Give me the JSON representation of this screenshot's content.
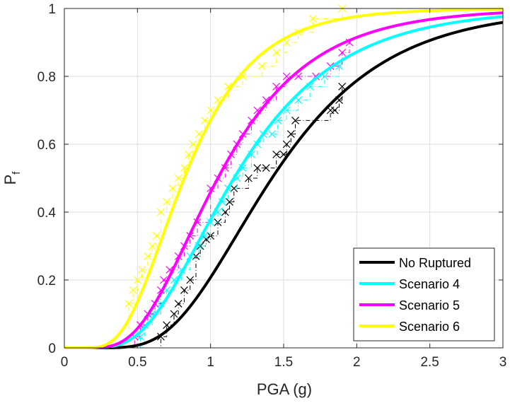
{
  "chart_data": {
    "type": "line",
    "title": "",
    "xlabel": "PGA (g)",
    "ylabel_main": "P",
    "ylabel_sub": "f",
    "xlim": [
      0,
      3
    ],
    "ylim": [
      0,
      1
    ],
    "xticks": [
      0,
      0.5,
      1,
      1.5,
      2,
      2.5,
      3
    ],
    "xtick_labels": [
      "0",
      "0.5",
      "1",
      "1.5",
      "2",
      "2.5",
      "3"
    ],
    "yticks": [
      0,
      0.2,
      0.4,
      0.6,
      0.8,
      1
    ],
    "ytick_labels": [
      "0",
      "0.2",
      "0.4",
      "0.6",
      "0.8",
      "1"
    ],
    "grid": true,
    "legend_position": "bottom-right",
    "series": [
      {
        "name": "No Ruptured",
        "color": "#000000",
        "fragility_median": 1.42,
        "fragility_beta": 0.43,
        "empirical_x": [
          0.66,
          0.7,
          0.75,
          0.78,
          0.82,
          0.86,
          0.9,
          0.93,
          0.97,
          1.0,
          1.05,
          1.1,
          1.13,
          1.16,
          1.26,
          1.32,
          1.38,
          1.45,
          1.5,
          1.52,
          1.55,
          1.58,
          1.82,
          1.85,
          1.88,
          1.9
        ],
        "empirical_y": [
          0.033,
          0.067,
          0.1,
          0.13,
          0.17,
          0.2,
          0.27,
          0.3,
          0.32,
          0.33,
          0.37,
          0.4,
          0.43,
          0.47,
          0.5,
          0.53,
          0.53,
          0.57,
          0.57,
          0.6,
          0.63,
          0.67,
          0.7,
          0.7,
          0.73,
          0.77
        ]
      },
      {
        "name": "Scenario 4",
        "color": "#00ffff",
        "fragility_median": 1.16,
        "fragility_beta": 0.48,
        "empirical_x": [
          0.52,
          0.55,
          0.6,
          0.66,
          0.7,
          0.75,
          0.8,
          0.86,
          0.92,
          0.96,
          1.0,
          1.05,
          1.08,
          1.12,
          1.18,
          1.22,
          1.28,
          1.32,
          1.36,
          1.42,
          1.46,
          1.52,
          1.6,
          1.68,
          1.78,
          1.88
        ],
        "empirical_y": [
          0.033,
          0.067,
          0.1,
          0.13,
          0.17,
          0.2,
          0.23,
          0.27,
          0.3,
          0.33,
          0.37,
          0.4,
          0.43,
          0.47,
          0.5,
          0.53,
          0.57,
          0.6,
          0.63,
          0.63,
          0.67,
          0.7,
          0.73,
          0.77,
          0.8,
          0.83
        ]
      },
      {
        "name": "Scenario 5",
        "color": "#ff00ff",
        "fragility_median": 1.05,
        "fragility_beta": 0.47,
        "empirical_x": [
          0.48,
          0.52,
          0.57,
          0.62,
          0.66,
          0.68,
          0.72,
          0.78,
          0.82,
          0.86,
          0.91,
          1.0,
          1.05,
          1.1,
          1.14,
          1.18,
          1.22,
          1.28,
          1.32,
          1.38,
          1.45,
          1.52,
          1.6,
          1.72,
          1.82,
          1.9,
          1.95
        ],
        "empirical_y": [
          0.033,
          0.067,
          0.1,
          0.13,
          0.17,
          0.2,
          0.23,
          0.27,
          0.3,
          0.33,
          0.37,
          0.47,
          0.5,
          0.53,
          0.57,
          0.6,
          0.63,
          0.67,
          0.7,
          0.73,
          0.77,
          0.8,
          0.8,
          0.8,
          0.83,
          0.87,
          0.9
        ]
      },
      {
        "name": "Scenario 6",
        "color": "#ffff00",
        "fragility_median": 0.82,
        "fragility_beta": 0.45,
        "empirical_x": [
          0.44,
          0.47,
          0.5,
          0.53,
          0.57,
          0.6,
          0.63,
          0.66,
          0.7,
          0.74,
          0.78,
          0.82,
          0.85,
          0.88,
          0.92,
          0.96,
          1.0,
          1.05,
          1.12,
          1.22,
          1.35,
          1.45,
          1.52,
          1.6,
          1.7,
          1.9
        ],
        "empirical_y": [
          0.13,
          0.17,
          0.2,
          0.23,
          0.27,
          0.3,
          0.33,
          0.4,
          0.43,
          0.47,
          0.5,
          0.53,
          0.57,
          0.6,
          0.63,
          0.67,
          0.7,
          0.73,
          0.77,
          0.8,
          0.83,
          0.87,
          0.9,
          0.93,
          0.97,
          1.0
        ]
      }
    ]
  }
}
